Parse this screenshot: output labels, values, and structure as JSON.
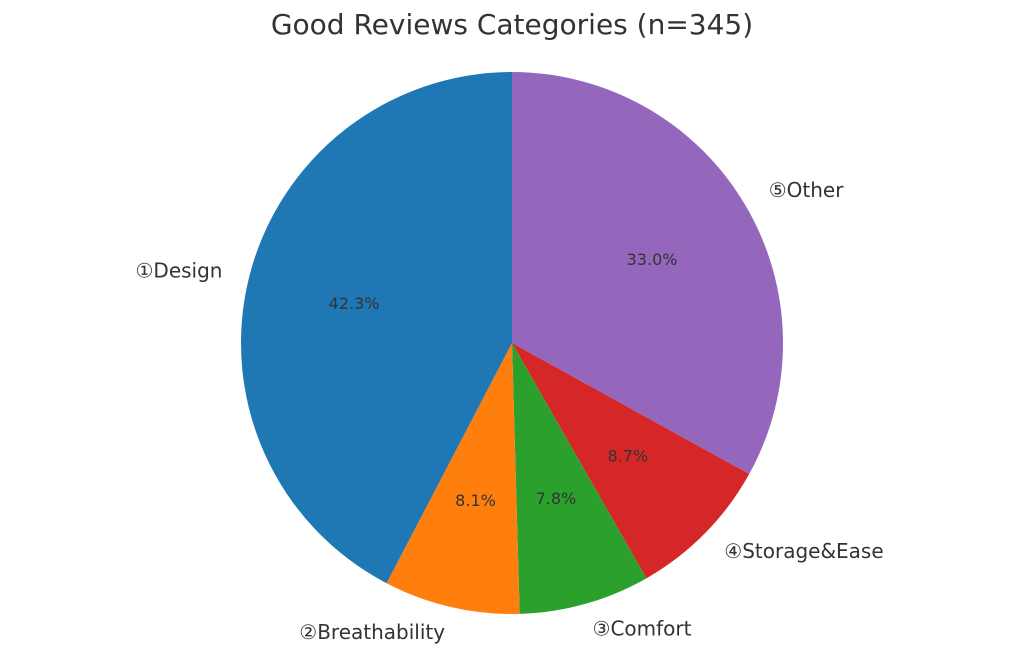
{
  "chart_data": {
    "type": "pie",
    "title": "Good Reviews Categories (n=345)",
    "start_angle": "top, clockwise",
    "slices": [
      {
        "label": "⑤Other",
        "value": 33.0,
        "display": "33.0%",
        "color": "#9467bd"
      },
      {
        "label": "④Storage&Ease",
        "value": 8.7,
        "display": "8.7%",
        "color": "#d62728"
      },
      {
        "label": "③Comfort",
        "value": 7.8,
        "display": "7.8%",
        "color": "#2ca02c"
      },
      {
        "label": "②Breathability",
        "value": 8.1,
        "display": "8.1%",
        "color": "#ff7f0e"
      },
      {
        "label": "①Design",
        "value": 42.3,
        "display": "42.3%",
        "color": "#1f77b4"
      }
    ]
  }
}
